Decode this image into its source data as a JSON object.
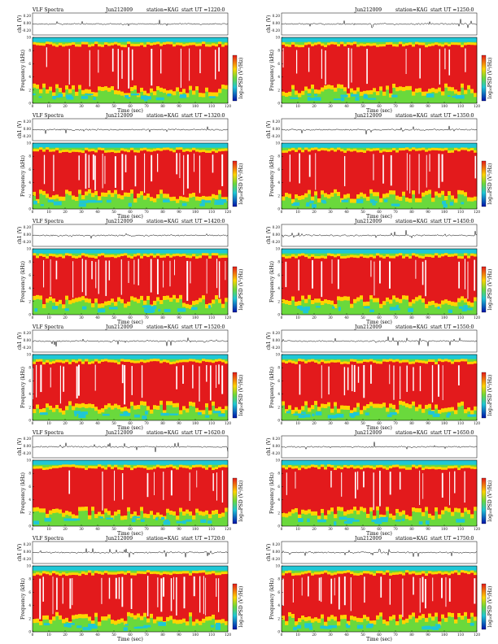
{
  "chart_data": [
    {
      "type": "heatmap",
      "header": {
        "left": "VLF Spectra",
        "date": "Jun212009",
        "station": "station=KAG",
        "start": "start  UT  =1220:0"
      }
    },
    {
      "type": "heatmap",
      "header": {
        "left": "",
        "date": "Jun212009",
        "station": "station=KAG",
        "start": "start  UT  =1250:0"
      }
    },
    {
      "type": "heatmap",
      "header": {
        "left": "VLF Spectra",
        "date": "Jun212009",
        "station": "station=KAG",
        "start": "start  UT  =1320:0"
      }
    },
    {
      "type": "heatmap",
      "header": {
        "left": "",
        "date": "Jun212009",
        "station": "station=KAG",
        "start": "start  UT  =1350:0"
      }
    },
    {
      "type": "heatmap",
      "header": {
        "left": "VLF Spectra",
        "date": "Jun212009",
        "station": "station=KAG",
        "start": "start  UT  =1420:0"
      }
    },
    {
      "type": "heatmap",
      "header": {
        "left": "",
        "date": "Jun212009",
        "station": "station=KAG",
        "start": "start  UT  =1450:0"
      }
    },
    {
      "type": "heatmap",
      "header": {
        "left": "VLF Spectra",
        "date": "Jun212009",
        "station": "station=KAG",
        "start": "start  UT  =1520:0"
      }
    },
    {
      "type": "heatmap",
      "header": {
        "left": "",
        "date": "Jun212009",
        "station": "station=KAG",
        "start": "start  UT  =1550:0"
      }
    },
    {
      "type": "heatmap",
      "header": {
        "left": "VLF Spectra",
        "date": "Jun212009",
        "station": "station=KAG",
        "start": "start  UT  =1620:0"
      }
    },
    {
      "type": "heatmap",
      "header": {
        "left": "",
        "date": "Jun212009",
        "station": "station=KAG",
        "start": "start  UT  =1650:0"
      }
    },
    {
      "type": "heatmap",
      "header": {
        "left": "VLF Spectra",
        "date": "Jun212009",
        "station": "station=KAG",
        "start": "start  UT  =1720:0"
      }
    },
    {
      "type": "heatmap",
      "header": {
        "left": "",
        "date": "Jun212009",
        "station": "station=KAG",
        "start": "start  UT  =1750:0"
      }
    }
  ],
  "shared": {
    "xlabel": "Time  (sec)",
    "ylabel_spec": "Frequency  (kHz)",
    "ylabel_wave": "ch1 (V)",
    "cbar_label": "log₁₀PSD (V²/Hz)",
    "x_ticks": [
      "0",
      "10",
      "20",
      "30",
      "40",
      "50",
      "60",
      "70",
      "80",
      "90",
      "100",
      "110",
      "120"
    ],
    "y_ticks": [
      "0",
      "2",
      "4",
      "6",
      "8",
      "10"
    ],
    "wave_ticks": [
      "0.20",
      "0.00",
      "-0.20"
    ],
    "xlim": [
      0,
      120
    ],
    "ylim": [
      0,
      10
    ],
    "colors": {
      "high": "#e31a1c",
      "mid": "#ffd400",
      "low": "#6ad93c",
      "min": "#1fc7d6",
      "deep": "#0011a8"
    }
  }
}
